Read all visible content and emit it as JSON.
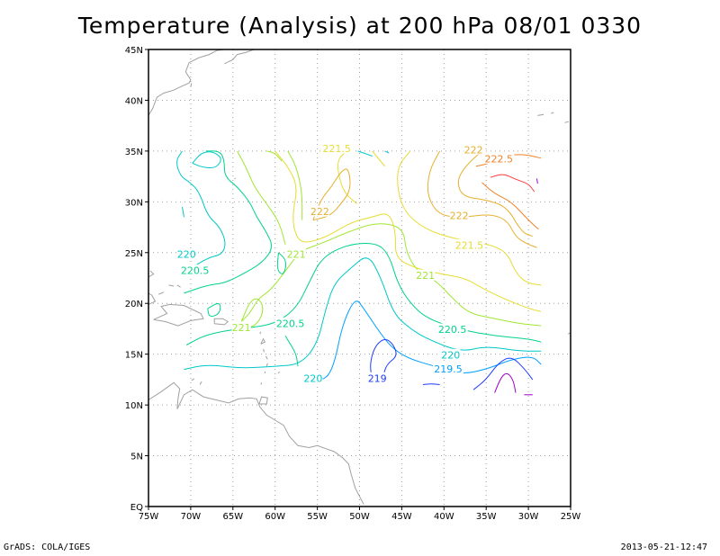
{
  "title": "Temperature (Analysis) at 200 hPa 08/01 0330",
  "footer": {
    "left": "GrADS: COLA/IGES",
    "right": "2013-05-21-12:47"
  },
  "map": {
    "lon_range": [
      -75,
      -25
    ],
    "lat_range": [
      0,
      45
    ],
    "lon_ticks": [
      {
        "v": -75,
        "label": "75W"
      },
      {
        "v": -70,
        "label": "70W"
      },
      {
        "v": -65,
        "label": "65W"
      },
      {
        "v": -60,
        "label": "60W"
      },
      {
        "v": -55,
        "label": "55W"
      },
      {
        "v": -50,
        "label": "50W"
      },
      {
        "v": -45,
        "label": "45W"
      },
      {
        "v": -40,
        "label": "40W"
      },
      {
        "v": -35,
        "label": "35W"
      },
      {
        "v": -30,
        "label": "30W"
      },
      {
        "v": -25,
        "label": "25W"
      }
    ],
    "lat_ticks": [
      {
        "v": 0,
        "label": "EQ"
      },
      {
        "v": 5,
        "label": "5N"
      },
      {
        "v": 10,
        "label": "10N"
      },
      {
        "v": 15,
        "label": "15N"
      },
      {
        "v": 20,
        "label": "20N"
      },
      {
        "v": 25,
        "label": "25N"
      },
      {
        "v": 30,
        "label": "30N"
      },
      {
        "v": 35,
        "label": "35N"
      },
      {
        "v": 40,
        "label": "40N"
      },
      {
        "v": 45,
        "label": "45N"
      }
    ],
    "grid": true,
    "colors": {
      "coast": "#a0a0a0",
      "grid": "#a0a0a0",
      "c219": "#1e3cff",
      "c219_5": "#00a0ff",
      "c220": "#00c8c8",
      "c220_5": "#00d28c",
      "c221": "#a0e632",
      "c221_5": "#e6dc32",
      "c222": "#e6af2d",
      "c222_5": "#f08228",
      "c223": "#fa3c3c",
      "c218": "#a000c8"
    },
    "contour_labels": [
      {
        "text": "221.5",
        "lon": -52.7,
        "lat": 35.2,
        "color": "c221_5"
      },
      {
        "text": "222",
        "lon": -36.5,
        "lat": 35.1,
        "color": "c222"
      },
      {
        "text": "222.5",
        "lon": -33.5,
        "lat": 34.2,
        "color": "c222_5"
      },
      {
        "text": "222",
        "lon": -54.7,
        "lat": 29.0,
        "color": "c222"
      },
      {
        "text": "222",
        "lon": -38.2,
        "lat": 28.6,
        "color": "c222"
      },
      {
        "text": "221.5",
        "lon": -37.0,
        "lat": 25.7,
        "color": "c221_5"
      },
      {
        "text": "220",
        "lon": -70.5,
        "lat": 24.8,
        "color": "c220"
      },
      {
        "text": "221",
        "lon": -57.5,
        "lat": 24.8,
        "color": "c221"
      },
      {
        "text": "220.5",
        "lon": -69.5,
        "lat": 23.2,
        "color": "c220_5"
      },
      {
        "text": "221",
        "lon": -42.2,
        "lat": 22.7,
        "color": "c221"
      },
      {
        "text": "220.5",
        "lon": -58.2,
        "lat": 18.0,
        "color": "c220_5"
      },
      {
        "text": "221",
        "lon": -64.0,
        "lat": 17.6,
        "color": "c221"
      },
      {
        "text": "220.5",
        "lon": -39.0,
        "lat": 17.4,
        "color": "c220_5"
      },
      {
        "text": "220",
        "lon": -39.2,
        "lat": 14.9,
        "color": "c220"
      },
      {
        "text": "219.5",
        "lon": -39.5,
        "lat": 13.5,
        "color": "c219_5"
      },
      {
        "text": "220",
        "lon": -55.5,
        "lat": 12.6,
        "color": "c220"
      },
      {
        "text": "219",
        "lon": -47.9,
        "lat": 12.6,
        "color": "c219"
      }
    ]
  }
}
